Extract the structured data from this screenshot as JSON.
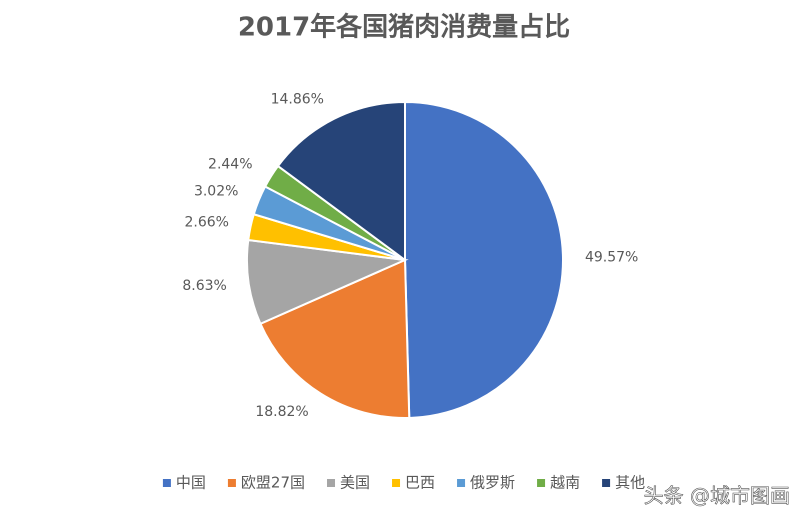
{
  "chart_data": {
    "type": "pie",
    "title": "2017年各国猪肉消费量占比",
    "categories": [
      "中国",
      "欧盟27国",
      "美国",
      "巴西",
      "俄罗斯",
      "越南",
      "其他"
    ],
    "values": [
      49.57,
      18.82,
      8.63,
      2.66,
      3.02,
      2.44,
      14.86
    ],
    "value_labels": [
      "49.57%",
      "18.82%",
      "8.63%",
      "2.66%",
      "3.02%",
      "2.44%",
      "14.86%"
    ],
    "colors": [
      "#4472c4",
      "#ed7d31",
      "#a5a5a5",
      "#ffc000",
      "#5b9bd5",
      "#70ad47",
      "#264478"
    ],
    "legend": "bottom"
  },
  "watermark": "头条 @城市图画"
}
